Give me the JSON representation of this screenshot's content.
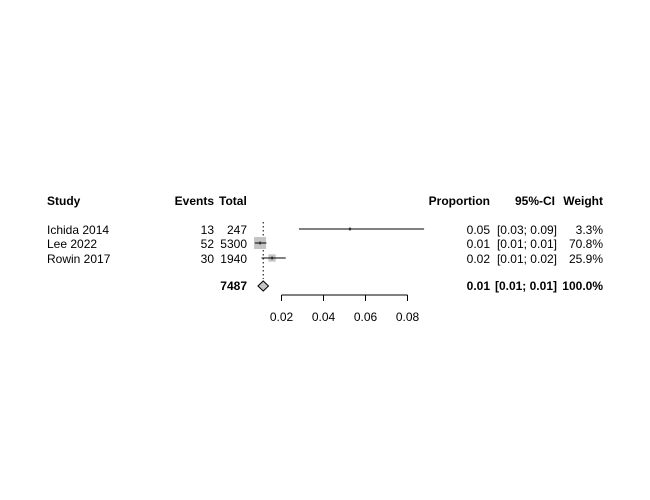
{
  "chart_data": {
    "type": "forest",
    "columns": {
      "study": "Study",
      "events": "Events",
      "total": "Total",
      "proportion": "Proportion",
      "ci": "95%-CI",
      "weight": "Weight"
    },
    "studies": [
      {
        "study": "Ichida 2014",
        "events": "13",
        "total": "247",
        "est": 0.0526,
        "lower": 0.0283,
        "upper": 0.0879,
        "weight_pct": 3.3,
        "prop_text": "0.05",
        "ci_text": "[0.03; 0.09]",
        "weight_text": "3.3%"
      },
      {
        "study": "Lee 2022",
        "events": "52",
        "total": "5300",
        "est": 0.0098,
        "lower": 0.0073,
        "upper": 0.0128,
        "weight_pct": 70.8,
        "prop_text": "0.01",
        "ci_text": "[0.01; 0.01]",
        "weight_text": "70.8%"
      },
      {
        "study": "Rowin 2017",
        "events": "30",
        "total": "1940",
        "est": 0.0155,
        "lower": 0.0105,
        "upper": 0.022,
        "weight_pct": 25.9,
        "prop_text": "0.02",
        "ci_text": "[0.01; 0.02]",
        "weight_text": "25.9%"
      }
    ],
    "pooled": {
      "total": "7487",
      "est": 0.0113,
      "lower": 0.0095,
      "upper": 0.0131,
      "prop_text": "0.01",
      "ci_text": "[0.01; 0.01]",
      "weight_text": "100.0%"
    },
    "reference_line": 0.0113,
    "x_axis": {
      "ticks": [
        0.02,
        0.04,
        0.06,
        0.08
      ],
      "tick_labels": [
        "0.02",
        "0.04",
        "0.06",
        "0.08"
      ],
      "range": [
        0.01,
        0.08
      ]
    }
  }
}
